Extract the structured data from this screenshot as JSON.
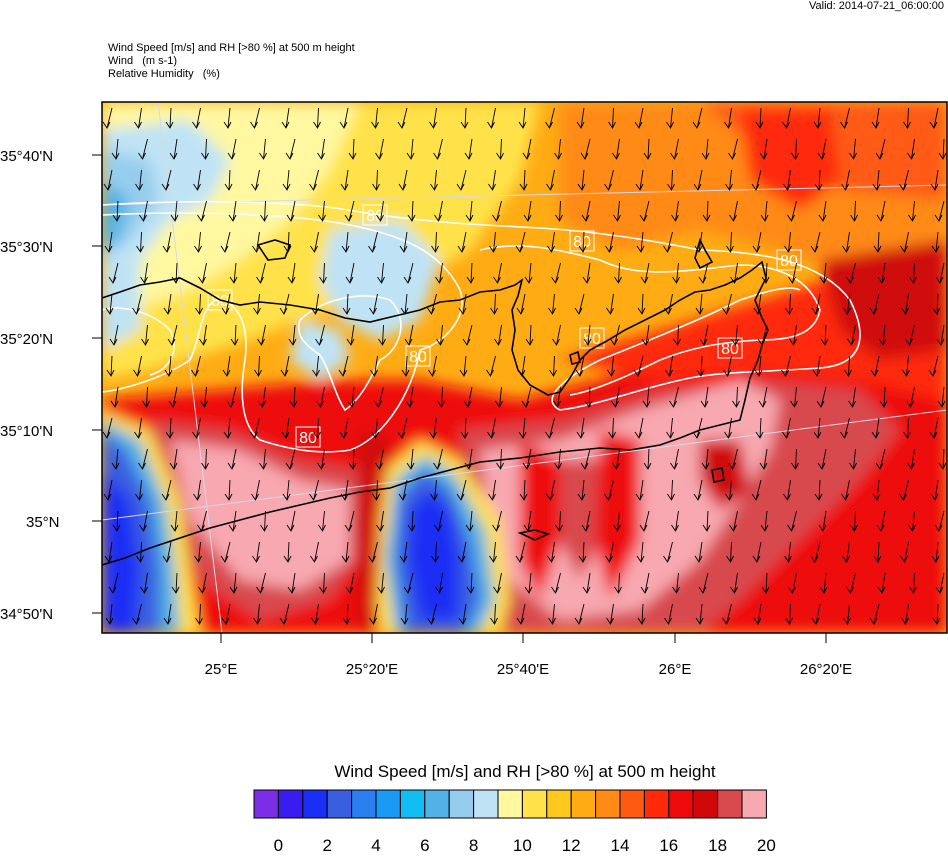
{
  "valid": "Valid: 2014-07-21_06:00:00",
  "header": {
    "line1": "Wind Speed [m/s] and RH [>80 %] at 500 m height",
    "line2": "Wind   (m s-1)",
    "line3": "Relative Humidity   (%)"
  },
  "map": {
    "lat_labels": [
      "35°40'N",
      "35°30'N",
      "35°20'N",
      "35°10'N",
      "35°N",
      "34°50'N"
    ],
    "lon_labels": [
      "25°E",
      "25°20'E",
      "25°40'E",
      "26°E",
      "26°20'E"
    ],
    "rh_contour_label": "80",
    "rh_threshold_percent": 80,
    "wind_direction": "north-to-south",
    "coastline_color": "#000000",
    "contour_color": "#ffffff"
  },
  "colorbar": {
    "title": "Wind Speed [m/s] and RH [>80 %] at 500 m height",
    "ticks": [
      "0",
      "2",
      "4",
      "6",
      "8",
      "10",
      "12",
      "14",
      "16",
      "18",
      "20"
    ],
    "colors": [
      "#7b2ee6",
      "#3a1cf0",
      "#1a2ef5",
      "#3a5ee0",
      "#2a7ef0",
      "#1a9af5",
      "#12bcf5",
      "#52b2e6",
      "#96cdee",
      "#bfe3f5",
      "#fff8a0",
      "#ffe24a",
      "#ffc81e",
      "#ffac14",
      "#ff8a14",
      "#ff5a12",
      "#ff2a0a",
      "#ee0a0a",
      "#d0080a",
      "#d84a4e",
      "#f8a8b0"
    ]
  }
}
